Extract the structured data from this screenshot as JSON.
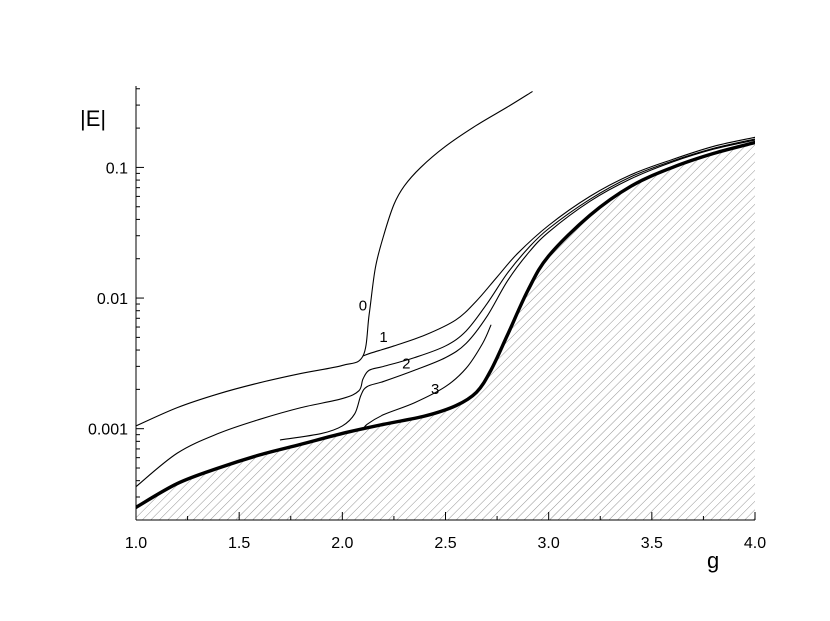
{
  "chart_data": {
    "type": "line",
    "title": "",
    "xlabel": "g",
    "ylabel": "|E|",
    "xlim": [
      1.0,
      4.0
    ],
    "ylim": [
      0.0002,
      0.42
    ],
    "yscale": "log",
    "grid": false,
    "x_ticks": [
      1.0,
      1.5,
      2.0,
      2.5,
      3.0,
      3.5,
      4.0
    ],
    "x_tick_labels": [
      "1.0",
      "1.5",
      "2.0",
      "2.5",
      "3.0",
      "3.5",
      "4.0"
    ],
    "y_ticks": [
      0.001,
      0.01,
      0.1
    ],
    "y_tick_labels": [
      "0.001",
      "0.01",
      "0.1"
    ],
    "shaded_region": "below-boundary",
    "series": [
      {
        "name": "0",
        "color": "#000000",
        "points": [
          [
            1.0,
            0.00105
          ],
          [
            1.2,
            0.00145
          ],
          [
            1.4,
            0.00185
          ],
          [
            1.6,
            0.00225
          ],
          [
            1.8,
            0.00265
          ],
          [
            2.0,
            0.00305
          ],
          [
            2.1,
            0.0036
          ],
          [
            2.13,
            0.0075
          ],
          [
            2.16,
            0.017
          ],
          [
            2.2,
            0.03
          ],
          [
            2.25,
            0.052
          ],
          [
            2.3,
            0.072
          ],
          [
            2.38,
            0.1
          ],
          [
            2.5,
            0.145
          ],
          [
            2.65,
            0.21
          ],
          [
            2.8,
            0.29
          ],
          [
            2.92,
            0.38
          ]
        ]
      },
      {
        "name": "1",
        "color": "#000000",
        "points": [
          [
            2.1,
            0.0036
          ],
          [
            2.14,
            0.0038
          ],
          [
            2.25,
            0.0043
          ],
          [
            2.4,
            0.0052
          ],
          [
            2.55,
            0.0068
          ],
          [
            2.65,
            0.0095
          ],
          [
            2.75,
            0.0145
          ],
          [
            2.85,
            0.022
          ],
          [
            3.0,
            0.036
          ],
          [
            3.2,
            0.06
          ],
          [
            3.4,
            0.088
          ],
          [
            3.6,
            0.115
          ],
          [
            3.8,
            0.145
          ],
          [
            4.0,
            0.17
          ]
        ]
      },
      {
        "name": "2",
        "color": "#000000",
        "points": [
          [
            1.0,
            0.00036
          ],
          [
            1.2,
            0.00065
          ],
          [
            1.4,
            0.00092
          ],
          [
            1.6,
            0.00118
          ],
          [
            1.8,
            0.00145
          ],
          [
            2.0,
            0.0017
          ],
          [
            2.08,
            0.00195
          ],
          [
            2.1,
            0.0024
          ],
          [
            2.13,
            0.0028
          ],
          [
            2.2,
            0.003
          ],
          [
            2.35,
            0.0035
          ],
          [
            2.5,
            0.0043
          ],
          [
            2.6,
            0.0056
          ],
          [
            2.7,
            0.009
          ],
          [
            2.8,
            0.0155
          ],
          [
            2.9,
            0.024
          ],
          [
            3.0,
            0.034
          ],
          [
            3.2,
            0.057
          ],
          [
            3.4,
            0.085
          ],
          [
            3.6,
            0.112
          ],
          [
            3.8,
            0.14
          ],
          [
            4.0,
            0.165
          ]
        ]
      },
      {
        "name": "3",
        "color": "#000000",
        "points": [
          [
            1.7,
            0.00082
          ],
          [
            1.9,
            0.00092
          ],
          [
            2.0,
            0.00105
          ],
          [
            2.06,
            0.0013
          ],
          [
            2.09,
            0.0018
          ],
          [
            2.12,
            0.0021
          ],
          [
            2.2,
            0.0023
          ],
          [
            2.35,
            0.0028
          ],
          [
            2.5,
            0.0035
          ],
          [
            2.6,
            0.0045
          ],
          [
            2.7,
            0.0072
          ],
          [
            2.8,
            0.0135
          ],
          [
            2.9,
            0.022
          ],
          [
            3.0,
            0.032
          ],
          [
            3.2,
            0.055
          ],
          [
            3.4,
            0.082
          ],
          [
            3.6,
            0.11
          ],
          [
            3.8,
            0.138
          ],
          [
            4.0,
            0.162
          ]
        ]
      },
      {
        "name": "",
        "color": "#000000",
        "points": [
          [
            2.1,
            0.00098
          ],
          [
            2.12,
            0.00108
          ],
          [
            2.2,
            0.00128
          ],
          [
            2.35,
            0.00158
          ],
          [
            2.5,
            0.0021
          ],
          [
            2.6,
            0.0029
          ],
          [
            2.68,
            0.0045
          ],
          [
            2.72,
            0.0062
          ]
        ]
      },
      {
        "name": "",
        "color": "#000000",
        "bold": true,
        "points": [
          [
            1.0,
            0.00025
          ],
          [
            1.2,
            0.00038
          ],
          [
            1.4,
            0.0005
          ],
          [
            1.6,
            0.00063
          ],
          [
            1.8,
            0.00076
          ],
          [
            2.0,
            0.00092
          ],
          [
            2.2,
            0.00108
          ],
          [
            2.4,
            0.00125
          ],
          [
            2.55,
            0.0015
          ],
          [
            2.65,
            0.0019
          ],
          [
            2.72,
            0.0028
          ],
          [
            2.8,
            0.0052
          ],
          [
            2.9,
            0.0115
          ],
          [
            3.0,
            0.021
          ],
          [
            3.2,
            0.043
          ],
          [
            3.4,
            0.072
          ],
          [
            3.6,
            0.1
          ],
          [
            3.8,
            0.128
          ],
          [
            4.0,
            0.155
          ]
        ]
      }
    ],
    "curve_labels": [
      {
        "text": "0",
        "x": 2.1,
        "y": 0.008
      },
      {
        "text": "1",
        "x": 2.2,
        "y": 0.0046
      },
      {
        "text": "2",
        "x": 2.31,
        "y": 0.0029
      },
      {
        "text": "3",
        "x": 2.45,
        "y": 0.00185
      }
    ]
  }
}
